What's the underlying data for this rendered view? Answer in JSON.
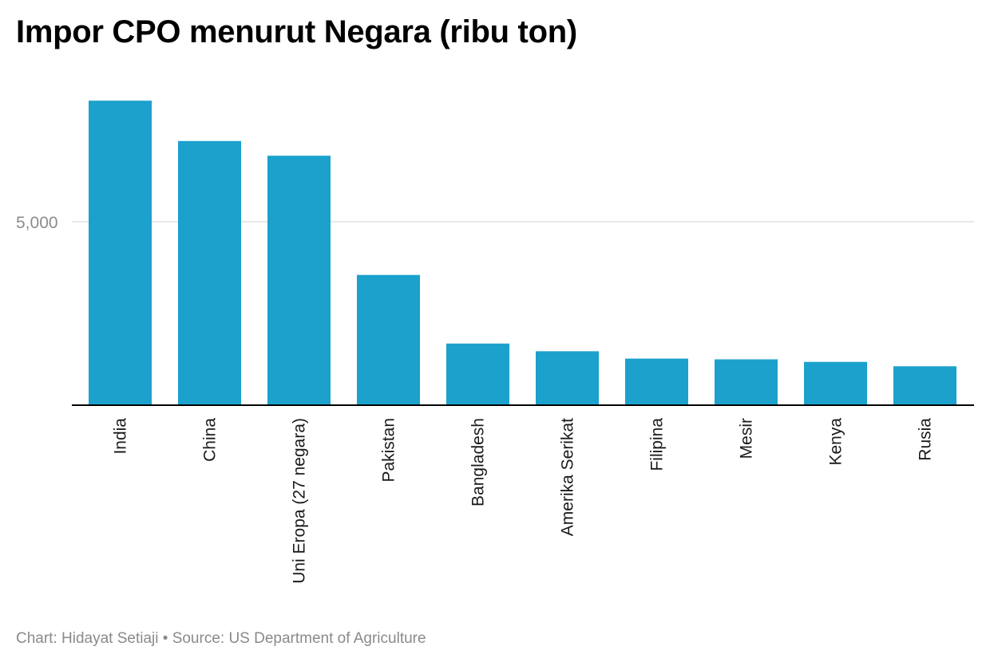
{
  "title": "Impor CPO menurut Negara (ribu ton)",
  "footer": {
    "chart_credit": "Chart: Hidayat Setiaji",
    "separator": " • ",
    "source": "Source: US Department of Agriculture"
  },
  "colors": {
    "bar": "#1ba1cc",
    "gridline": "#e0e0e0",
    "axis": "#000000"
  },
  "chart_data": {
    "type": "bar",
    "title": "Impor CPO menurut Negara (ribu ton)",
    "categories": [
      "India",
      "China",
      "Uni Eropa (27 negara)",
      "Pakistan",
      "Bangladesh",
      "Amerika Serikat",
      "Filipina",
      "Mesir",
      "Kenya",
      "Russia"
    ],
    "values": [
      8300,
      7200,
      6800,
      3550,
      1680,
      1470,
      1270,
      1250,
      1180,
      1060
    ],
    "yticks": [
      5000
    ],
    "ytick_labels": [
      "5,000"
    ],
    "ylim": [
      0,
      9000
    ],
    "grid": true,
    "legend": "none",
    "xlabel": "",
    "ylabel": ""
  }
}
